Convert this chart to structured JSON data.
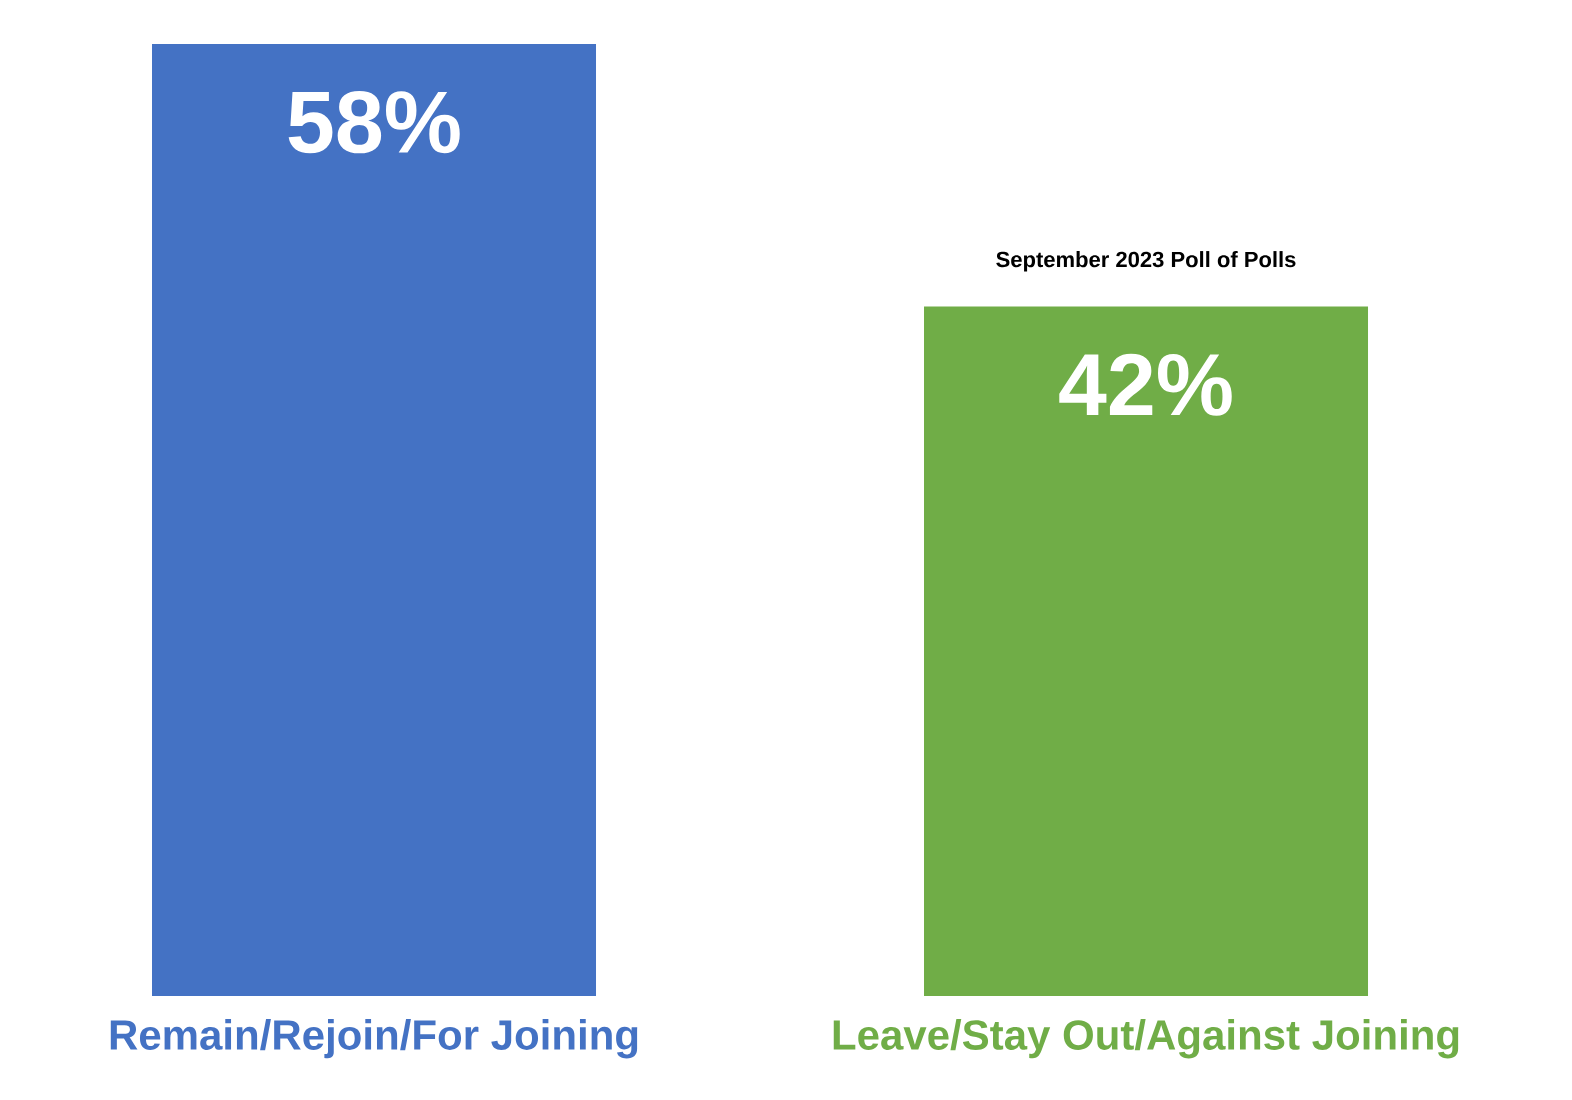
{
  "chart_data": {
    "type": "bar",
    "categories": [
      "Remain/Rejoin/For Joining",
      "Leave/Stay Out/Against Joining"
    ],
    "values": [
      58,
      42
    ],
    "colors": [
      "#4472c4",
      "#70ad47"
    ],
    "value_labels": [
      "58%",
      "42%"
    ],
    "annotations": [
      "September 2023 Poll of Polls"
    ]
  }
}
